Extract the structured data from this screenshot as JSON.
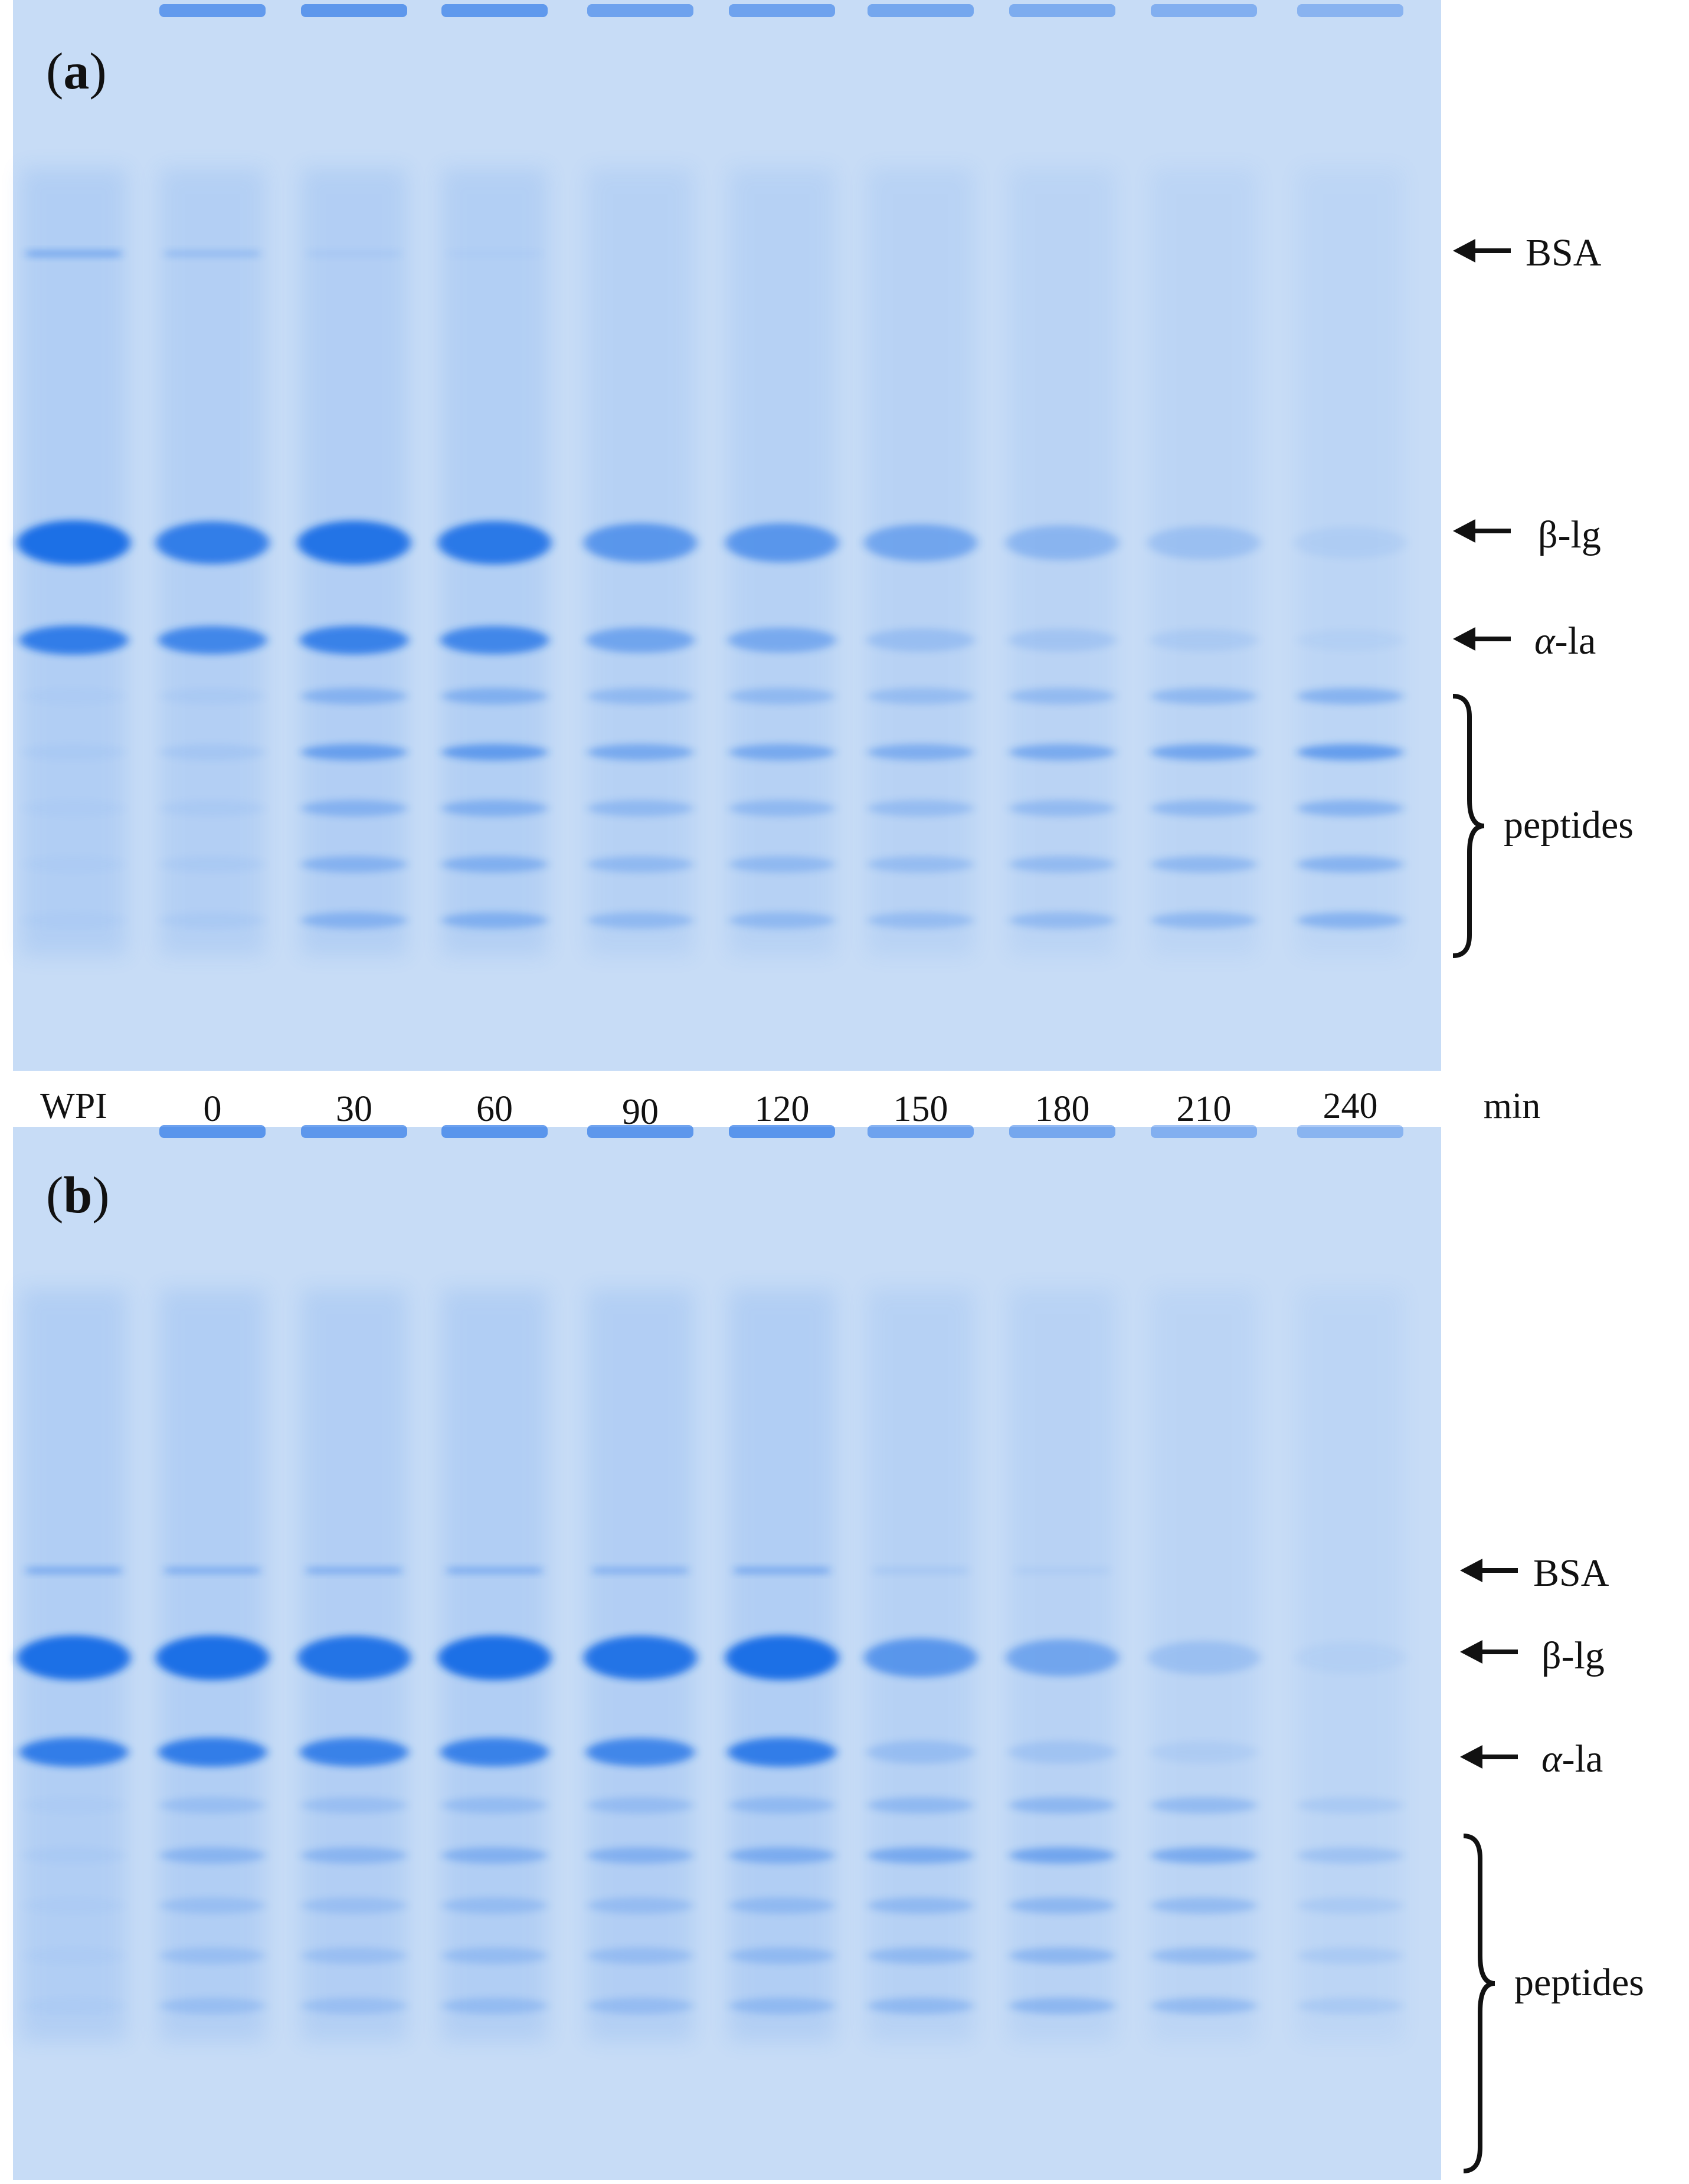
{
  "colors": {
    "gel_background": "#c7dcf6",
    "band": "#1f6fe6",
    "text": "#111111"
  },
  "figure": {
    "lane_labels": [
      "WPI",
      "0",
      "30",
      "60",
      "90",
      "120",
      "150",
      "180",
      "210",
      "240"
    ],
    "unit_label": "min",
    "panels": [
      {
        "id": "a",
        "label_open": "(",
        "label_letter": "a",
        "label_close": ")",
        "markers": {
          "bsa": "BSA",
          "beta_lg": "β-lg",
          "alpha_la_prefix": "α",
          "alpha_la_suffix": "-la",
          "peptides": "peptides"
        },
        "bands": {
          "bsa": [
            0.55,
            0.3,
            0.1,
            0.05,
            0.0,
            0.0,
            0.0,
            0.0,
            0.0,
            0.0
          ],
          "beta_lg": [
            1.0,
            0.85,
            0.95,
            0.9,
            0.6,
            0.6,
            0.45,
            0.3,
            0.2,
            0.08
          ],
          "alpha_la": [
            0.85,
            0.75,
            0.8,
            0.75,
            0.45,
            0.4,
            0.2,
            0.15,
            0.1,
            0.05
          ],
          "peptides": [
            0.05,
            0.1,
            0.55,
            0.6,
            0.45,
            0.45,
            0.4,
            0.45,
            0.5,
            0.6
          ]
        }
      },
      {
        "id": "b",
        "label_open": "(",
        "label_letter": "b",
        "label_close": ")",
        "markers": {
          "bsa": "BSA",
          "beta_lg": "β-lg",
          "alpha_la_prefix": "α",
          "alpha_la_suffix": "-la",
          "peptides": "peptides"
        },
        "bands": {
          "bsa": [
            0.55,
            0.5,
            0.5,
            0.5,
            0.45,
            0.55,
            0.15,
            0.1,
            0.0,
            0.0
          ],
          "beta_lg": [
            1.0,
            1.0,
            0.95,
            1.0,
            0.95,
            1.0,
            0.6,
            0.45,
            0.2,
            0.05
          ],
          "alpha_la": [
            0.85,
            0.85,
            0.8,
            0.8,
            0.75,
            0.85,
            0.2,
            0.15,
            0.08,
            0.0
          ],
          "peptides": [
            0.05,
            0.3,
            0.3,
            0.35,
            0.35,
            0.4,
            0.45,
            0.5,
            0.45,
            0.2
          ]
        }
      }
    ]
  }
}
